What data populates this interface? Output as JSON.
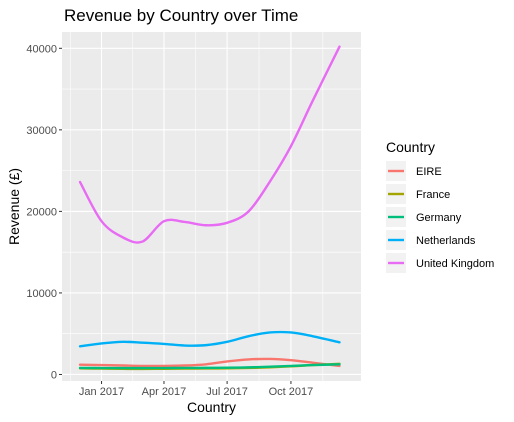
{
  "chart_data": {
    "type": "line",
    "title": "Revenue by Country over Time",
    "xlabel": "Country",
    "ylabel": "Revenue (£)",
    "legend_title": "Country",
    "legend_position": "right",
    "grid": true,
    "panel_background": "#ebebeb",
    "x_ticks": [
      {
        "date": "2017-01-01",
        "label": "Jan 2017"
      },
      {
        "date": "2017-04-01",
        "label": "Apr 2017"
      },
      {
        "date": "2017-07-01",
        "label": "Jul 2017"
      },
      {
        "date": "2017-10-01",
        "label": "Oct 2017"
      }
    ],
    "y_ticks": [
      0,
      10000,
      20000,
      30000,
      40000
    ],
    "xlim": [
      "2016-11-05",
      "2018-01-10"
    ],
    "ylim": [
      -800,
      42000
    ],
    "series": [
      {
        "name": "EIRE",
        "color": "#F8766D",
        "x": [
          "2016-12-01",
          "2017-01-01",
          "2017-02-01",
          "2017-03-01",
          "2017-04-01",
          "2017-05-01",
          "2017-06-01",
          "2017-07-01",
          "2017-08-01",
          "2017-09-01",
          "2017-10-01",
          "2017-11-01",
          "2017-12-10"
        ],
        "y": [
          1200,
          1150,
          1100,
          1050,
          1050,
          1100,
          1250,
          1600,
          1850,
          1900,
          1750,
          1450,
          1050
        ]
      },
      {
        "name": "France",
        "color": "#A3A500",
        "x": [
          "2016-12-01",
          "2017-01-01",
          "2017-02-01",
          "2017-03-01",
          "2017-04-01",
          "2017-05-01",
          "2017-06-01",
          "2017-07-01",
          "2017-08-01",
          "2017-09-01",
          "2017-10-01",
          "2017-11-01",
          "2017-12-10"
        ],
        "y": [
          750,
          720,
          690,
          680,
          700,
          720,
          740,
          760,
          800,
          880,
          1000,
          1150,
          1300
        ]
      },
      {
        "name": "Germany",
        "color": "#00BF7D",
        "x": [
          "2016-12-01",
          "2017-01-01",
          "2017-02-01",
          "2017-03-01",
          "2017-04-01",
          "2017-05-01",
          "2017-06-01",
          "2017-07-01",
          "2017-08-01",
          "2017-09-01",
          "2017-10-01",
          "2017-11-01",
          "2017-12-10"
        ],
        "y": [
          800,
          790,
          780,
          780,
          790,
          800,
          810,
          830,
          870,
          950,
          1050,
          1150,
          1250
        ]
      },
      {
        "name": "Netherlands",
        "color": "#00B0F6",
        "x": [
          "2016-12-01",
          "2017-01-01",
          "2017-02-01",
          "2017-03-01",
          "2017-04-01",
          "2017-05-01",
          "2017-06-01",
          "2017-07-01",
          "2017-08-01",
          "2017-09-01",
          "2017-10-01",
          "2017-11-01",
          "2017-12-10"
        ],
        "y": [
          3450,
          3800,
          4000,
          3900,
          3750,
          3550,
          3600,
          4000,
          4700,
          5150,
          5150,
          4700,
          3950
        ]
      },
      {
        "name": "United Kingdom",
        "color": "#E76BF3",
        "x": [
          "2016-12-01",
          "2017-01-01",
          "2017-02-01",
          "2017-03-01",
          "2017-04-01",
          "2017-05-01",
          "2017-06-01",
          "2017-07-01",
          "2017-08-01",
          "2017-09-01",
          "2017-10-01",
          "2017-11-01",
          "2017-12-10"
        ],
        "y": [
          23600,
          18800,
          16800,
          16300,
          18800,
          18700,
          18300,
          18600,
          20000,
          23700,
          28000,
          33500,
          40200
        ]
      }
    ]
  }
}
